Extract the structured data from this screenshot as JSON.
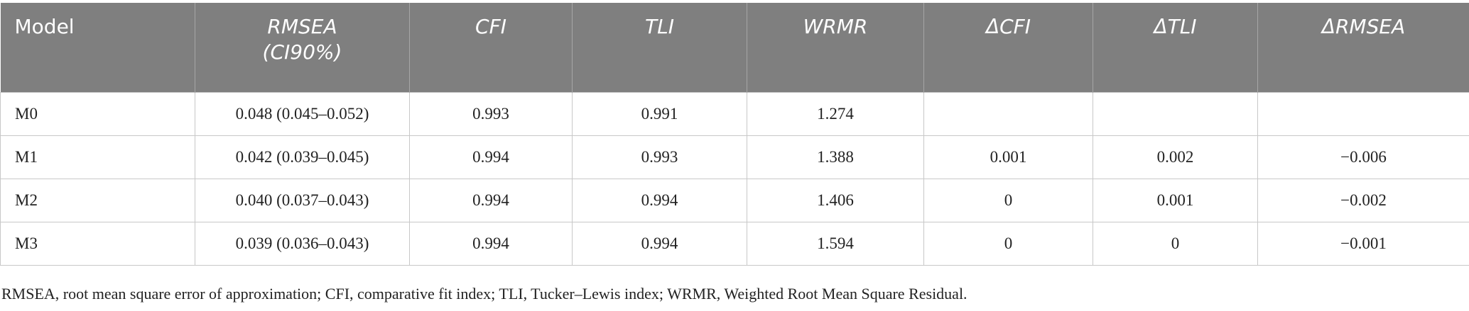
{
  "table": {
    "headers": [
      "Model",
      "RMSEA\n(CI90%)",
      "CFI",
      "TLI",
      "WRMR",
      "ΔCFI",
      "ΔTLI",
      "ΔRMSEA"
    ],
    "rows": [
      [
        "M0",
        "0.048 (0.045–0.052)",
        "0.993",
        "0.991",
        "1.274",
        null,
        null,
        null
      ],
      [
        "M1",
        "0.042 (0.039–0.045)",
        "0.994",
        "0.993",
        "1.388",
        "0.001",
        "0.002",
        "−0.006"
      ],
      [
        "M2",
        "0.040 (0.037–0.043)",
        "0.994",
        "0.994",
        "1.406",
        "0",
        "0.001",
        "−0.002"
      ],
      [
        "M3",
        "0.039 (0.036–0.043)",
        "0.994",
        "0.994",
        "1.594",
        "0",
        "0",
        "−0.001"
      ]
    ],
    "footnote": "RMSEA, root mean square error of approximation; CFI, comparative fit index; TLI, Tucker–Lewis index; WRMR, Weighted Root Mean Square Residual."
  }
}
